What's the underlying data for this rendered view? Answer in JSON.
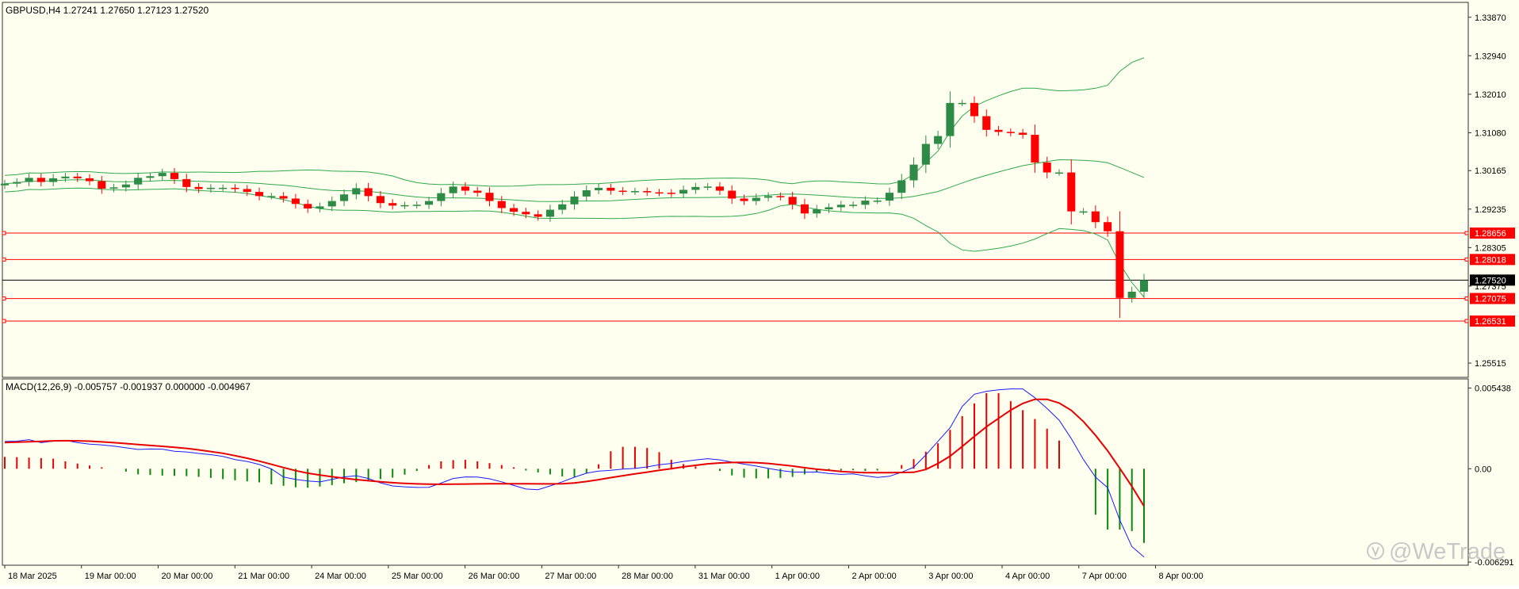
{
  "colors": {
    "background": "#fffff0",
    "frame": "#303030",
    "bull": "#2e8b47",
    "bear": "#ff0000",
    "bands": "#2fa84f",
    "level": "#ff0000",
    "price_line": "#000000",
    "macd_line": "#1a1aff",
    "signal_line": "#e60000",
    "hist_pos": "#e60000",
    "hist_neg": "#0a8a0a"
  },
  "chart_data": [
    {
      "type": "candlestick",
      "title": "GBPUSD,H4  1.27241 1.27650 1.27123 1.27520",
      "ylim": [
        1.2519,
        1.3421
      ],
      "y_ticks": [
        "1.33870",
        "1.32940",
        "1.32010",
        "1.31080",
        "1.30165",
        "1.29235",
        "1.28305",
        "1.27375",
        "1.25515"
      ],
      "x_labels": [
        "18 Mar 2025",
        "19 Mar 00:00",
        "20 Mar 00:00",
        "21 Mar 00:00",
        "24 Mar 00:00",
        "25 Mar 00:00",
        "26 Mar 00:00",
        "27 Mar 00:00",
        "28 Mar 00:00",
        "31 Mar 00:00",
        "1 Apr 00:00",
        "2 Apr 00:00",
        "3 Apr 00:00",
        "4 Apr 00:00",
        "7 Apr 00:00",
        "8 Apr 00:00"
      ],
      "bar_count": 95,
      "series": [
        {
          "name": "close",
          "values": [
            1.2985,
            1.2989,
            1.2999,
            1.2989,
            1.2998,
            1.3002,
            1.2998,
            1.2991,
            1.2973,
            1.2976,
            1.2983,
            1.2999,
            1.3003,
            1.3011,
            1.2996,
            1.2977,
            1.2972,
            1.2975,
            1.2975,
            1.2972,
            1.2965,
            1.2955,
            1.2955,
            1.2949,
            1.2936,
            1.2925,
            1.293,
            1.2943,
            1.2959,
            1.2974,
            1.2955,
            1.2938,
            1.2932,
            1.2933,
            1.2934,
            1.2943,
            1.2962,
            1.2978,
            1.2968,
            1.2963,
            1.2943,
            1.2926,
            1.2917,
            1.2911,
            1.2905,
            1.2922,
            1.2935,
            1.2954,
            1.2969,
            1.2975,
            1.2968,
            1.2966,
            1.2967,
            1.2964,
            1.2963,
            1.2961,
            1.297,
            1.2977,
            1.2978,
            1.2968,
            1.2949,
            1.2943,
            1.2951,
            1.2955,
            1.2953,
            1.2935,
            1.2913,
            1.2923,
            1.2928,
            1.2934,
            1.2934,
            1.2944,
            1.2944,
            1.2963,
            1.2993,
            1.3031,
            1.3081,
            1.31,
            1.318,
            1.318,
            1.3148,
            1.3115,
            1.311,
            1.3108,
            1.3103,
            1.3036,
            1.3012,
            1.3012,
            1.2918,
            1.2918,
            1.2892,
            1.287,
            1.2709,
            1.2724,
            1.2752
          ]
        }
      ]
    },
    {
      "type": "line",
      "title": "MACD(12,26,9) -0.005757 -0.001937 0.000000 -0.004967",
      "ylim": [
        -0.00645,
        0.006
      ],
      "y_ticks": [
        "0.005438",
        "0.00",
        "-0.006291"
      ],
      "series": [
        {
          "name": "MACD",
          "values": [
            0.00184,
            0.00186,
            0.00196,
            0.00176,
            0.00186,
            0.00191,
            0.00176,
            0.00166,
            0.00161,
            0.00153,
            0.00141,
            0.0013,
            0.00133,
            0.00132,
            0.00118,
            0.00113,
            0.00103,
            0.00095,
            0.00083,
            0.00062,
            0.00049,
            0.00029,
            -1e-05,
            -0.00056,
            -0.00072,
            -0.00083,
            -0.00089,
            -0.00072,
            -0.00055,
            -0.00047,
            -0.00066,
            -0.00095,
            -0.00116,
            -0.00122,
            -0.00126,
            -0.00125,
            -0.00097,
            -0.00066,
            -0.00055,
            -0.00056,
            -0.00068,
            -0.00088,
            -0.00113,
            -0.00137,
            -0.00141,
            -0.00116,
            -0.00088,
            -0.00057,
            -0.0003,
            -0.00016,
            -0.00011,
            -2e-05,
            2e-05,
            0.00012,
            0.00027,
            0.00036,
            0.00049,
            0.00059,
            0.00068,
            0.0006,
            0.00045,
            0.00031,
            0.00018,
            2e-05,
            -0.00012,
            -0.00022,
            -0.00023,
            -0.00022,
            -0.00032,
            -0.00038,
            -0.00035,
            -0.00048,
            -0.00059,
            -0.00051,
            -0.00023,
            0.0001,
            0.00093,
            0.00185,
            0.00276,
            0.0042,
            0.00502,
            0.00522,
            0.00532,
            0.00538,
            0.00538,
            0.00478,
            0.00406,
            0.00327,
            0.00203,
            0.00062,
            -0.00057,
            -0.00127,
            -0.00345,
            -0.00525,
            -0.00595
          ]
        },
        {
          "name": "Signal",
          "values": [
            0.00177,
            0.00179,
            0.00182,
            0.00185,
            0.00188,
            0.00189,
            0.00188,
            0.00186,
            0.00181,
            0.00176,
            0.0017,
            0.00163,
            0.00157,
            0.00151,
            0.00144,
            0.00137,
            0.00127,
            0.00116,
            0.00104,
            0.00088,
            0.00071,
            0.00051,
            0.0003,
            8e-05,
            -0.00013,
            -0.0003,
            -0.00043,
            -0.00054,
            -0.00064,
            -0.00073,
            -0.00081,
            -0.00088,
            -0.00094,
            -0.00099,
            -0.00102,
            -0.00104,
            -0.00105,
            -0.00104,
            -0.00103,
            -0.00102,
            -0.00101,
            -0.00101,
            -0.00101,
            -0.00101,
            -0.00102,
            -0.00102,
            -0.00101,
            -0.00096,
            -0.00086,
            -0.00074,
            -0.0006,
            -0.00047,
            -0.00034,
            -0.00023,
            -0.00011,
            0.0,
            0.00013,
            0.00023,
            0.00033,
            0.00039,
            0.00042,
            0.00043,
            0.00041,
            0.00036,
            0.00027,
            0.00018,
            7e-05,
            -3e-05,
            -0.00011,
            -0.00018,
            -0.00023,
            -0.00026,
            -0.00027,
            -0.00027,
            -0.00025,
            -0.00024,
            -5e-05,
            0.00035,
            0.00085,
            0.0015,
            0.00218,
            0.00283,
            0.0034,
            0.00395,
            0.0044,
            0.00468,
            0.00468,
            0.00443,
            0.00393,
            0.00318,
            0.00225,
            0.00121,
            3e-05,
            -0.00119,
            -0.00252
          ]
        },
        {
          "name": "Histogram",
          "values": [
            0.0008,
            0.00078,
            0.00075,
            0.00072,
            0.00068,
            0.0005,
            0.00035,
            0.00022,
            0.0001,
            0.0,
            -0.0002,
            -0.00038,
            -0.00042,
            -0.00046,
            -0.00048,
            -0.0005,
            -0.00055,
            -0.00062,
            -0.0007,
            -0.00078,
            -0.00085,
            -0.00092,
            -0.00105,
            -0.00115,
            -0.00125,
            -0.00128,
            -0.0012,
            -0.0011,
            -0.00098,
            -0.0009,
            -0.0008,
            -0.0007,
            -0.0006,
            -0.0004,
            -0.00015,
            0.00025,
            0.0005,
            0.00058,
            0.0006,
            0.0005,
            0.00038,
            0.00025,
            0.0001,
            -0.00012,
            -0.00025,
            -0.00038,
            -0.00052,
            -0.00055,
            -0.00032,
            0.0003,
            0.00118,
            0.00148,
            0.00148,
            0.0014,
            0.00112,
            0.0006,
            0.00032,
            0.00015,
            0.0,
            -0.00015,
            -0.00045,
            -0.0006,
            -0.00065,
            -0.00065,
            -0.00062,
            -0.00055,
            -0.00038,
            -0.0002,
            -0.00015,
            -0.00012,
            -0.0001,
            -0.00015,
            -0.00012,
            0.0,
            0.00025,
            0.00065,
            0.00115,
            0.00172,
            0.00262,
            0.00355,
            0.0044,
            0.0051,
            0.0051,
            0.00455,
            0.00395,
            0.00335,
            0.0027,
            0.0019,
            0.0,
            0.0,
            -0.0031,
            -0.0041,
            -0.0041,
            -0.0042,
            -0.005
          ]
        }
      ]
    }
  ],
  "levels": [
    {
      "price": 1.28656,
      "label": "1.28656"
    },
    {
      "price": 1.28018,
      "label": "1.28018"
    },
    {
      "price": 1.27075,
      "label": "1.27075"
    },
    {
      "price": 1.26531,
      "label": "1.26531"
    }
  ],
  "current_price": {
    "price": 1.2752,
    "label": "1.27520"
  },
  "watermark": "@WeTrade"
}
